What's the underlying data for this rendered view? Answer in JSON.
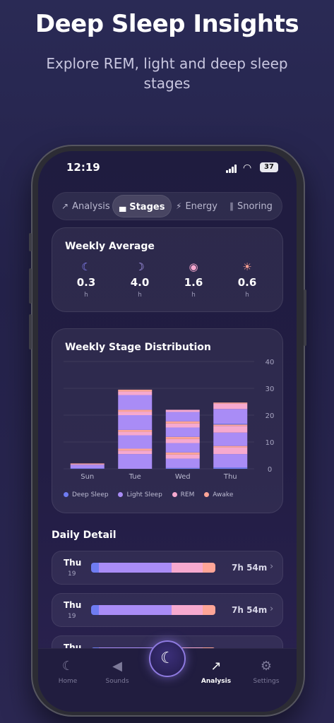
{
  "hero": {
    "title": "Deep Sleep Insights",
    "subtitle": "Explore REM, light and deep sleep stages"
  },
  "status_bar": {
    "time": "12:19",
    "battery": "37"
  },
  "tabs": [
    {
      "label": "Analysis",
      "icon": "line-chart-icon"
    },
    {
      "label": "Stages",
      "icon": "bed-icon",
      "active": true
    },
    {
      "label": "Energy",
      "icon": "bolt-icon"
    },
    {
      "label": "Snoring",
      "icon": "waveform-icon"
    }
  ],
  "weekly_average": {
    "title": "Weekly Average",
    "items": [
      {
        "icon": "moon-stars-icon",
        "value": "0.3",
        "unit": "h",
        "color": "#8a86ff"
      },
      {
        "icon": "moon-cloud-icon",
        "value": "4.0",
        "unit": "h",
        "color": "#b6a6ff"
      },
      {
        "icon": "eye-icon",
        "value": "1.6",
        "unit": "h",
        "color": "#f7a8cf"
      },
      {
        "icon": "sun-icon",
        "value": "0.6",
        "unit": "h",
        "color": "#ff9f92"
      }
    ]
  },
  "chart_data": {
    "type": "bar",
    "title": "Weekly Stage Distribution",
    "categories": [
      "Sun",
      "Tue",
      "Wed",
      "Thu"
    ],
    "y_ticks": [
      "40",
      "30",
      "20",
      "10",
      "0"
    ],
    "ylim": [
      0,
      40
    ],
    "grid": true,
    "legend_position": "bottom",
    "legend": [
      {
        "name": "Deep Sleep",
        "color": "#6f7cf2"
      },
      {
        "name": "Light Sleep",
        "color": "#a98cf6"
      },
      {
        "name": "REM",
        "color": "#f6a9cf"
      },
      {
        "name": "Awake",
        "color": "#ffa597"
      }
    ],
    "bars": [
      {
        "category": "Sun",
        "segments": [
          {
            "stage": "Deep Sleep",
            "value": 0.2
          },
          {
            "stage": "Light Sleep",
            "value": 1.3
          },
          {
            "stage": "REM",
            "value": 0.3
          },
          {
            "stage": "Awake",
            "value": 0.2
          }
        ]
      },
      {
        "category": "Tue",
        "segments": [
          {
            "stage": "Light Sleep",
            "value": 5.5
          },
          {
            "stage": "REM",
            "value": 1.3
          },
          {
            "stage": "Awake",
            "value": 0.7
          },
          {
            "stage": "Light Sleep",
            "value": 5.0
          },
          {
            "stage": "REM",
            "value": 1.3
          },
          {
            "stage": "Awake",
            "value": 0.7
          },
          {
            "stage": "Light Sleep",
            "value": 5.5
          },
          {
            "stage": "REM",
            "value": 1.3
          },
          {
            "stage": "Awake",
            "value": 0.7
          },
          {
            "stage": "Light Sleep",
            "value": 5.5
          },
          {
            "stage": "REM",
            "value": 1.3
          },
          {
            "stage": "Awake",
            "value": 0.7
          }
        ]
      },
      {
        "category": "Wed",
        "segments": [
          {
            "stage": "Deep Sleep",
            "value": 0.3
          },
          {
            "stage": "Light Sleep",
            "value": 3.5
          },
          {
            "stage": "REM",
            "value": 1.5
          },
          {
            "stage": "Awake",
            "value": 0.8
          },
          {
            "stage": "Light Sleep",
            "value": 3.5
          },
          {
            "stage": "REM",
            "value": 1.5
          },
          {
            "stage": "Awake",
            "value": 0.8
          },
          {
            "stage": "Light Sleep",
            "value": 3.5
          },
          {
            "stage": "REM",
            "value": 1.5
          },
          {
            "stage": "Awake",
            "value": 0.8
          },
          {
            "stage": "Light Sleep",
            "value": 3.5
          },
          {
            "stage": "REM",
            "value": 0.8
          }
        ]
      },
      {
        "category": "Thu",
        "segments": [
          {
            "stage": "Deep Sleep",
            "value": 0.5
          },
          {
            "stage": "Light Sleep",
            "value": 5.0
          },
          {
            "stage": "REM",
            "value": 2.5
          },
          {
            "stage": "Awake",
            "value": 0.5
          },
          {
            "stage": "Light Sleep",
            "value": 5.0
          },
          {
            "stage": "REM",
            "value": 2.5
          },
          {
            "stage": "Awake",
            "value": 0.5
          },
          {
            "stage": "Deep Sleep",
            "value": 0.3
          },
          {
            "stage": "Light Sleep",
            "value": 5.5
          },
          {
            "stage": "REM",
            "value": 2.0
          },
          {
            "stage": "Awake",
            "value": 0.4
          }
        ]
      }
    ]
  },
  "daily_detail": {
    "title": "Daily Detail",
    "rows": [
      {
        "day": "Thu",
        "date": "19",
        "duration": "7h 54m",
        "segments": [
          {
            "stage": "Deep Sleep",
            "fraction": 0.06,
            "color": "#6f7cf2"
          },
          {
            "stage": "Light Sleep",
            "fraction": 0.59,
            "color": "#a98cf6"
          },
          {
            "stage": "REM",
            "fraction": 0.25,
            "color": "#f6a9cf"
          },
          {
            "stage": "Awake",
            "fraction": 0.1,
            "color": "#ffa597"
          }
        ]
      },
      {
        "day": "Thu",
        "date": "19",
        "duration": "7h 54m",
        "segments": [
          {
            "stage": "Deep Sleep",
            "fraction": 0.06,
            "color": "#6f7cf2"
          },
          {
            "stage": "Light Sleep",
            "fraction": 0.59,
            "color": "#a98cf6"
          },
          {
            "stage": "REM",
            "fraction": 0.25,
            "color": "#f6a9cf"
          },
          {
            "stage": "Awake",
            "fraction": 0.1,
            "color": "#ffa597"
          }
        ]
      },
      {
        "day": "Thu",
        "date": "",
        "duration": "",
        "segments": [
          {
            "stage": "Deep Sleep",
            "fraction": 0.06,
            "color": "#6f7cf2"
          },
          {
            "stage": "Light Sleep",
            "fraction": 0.59,
            "color": "#a98cf6"
          },
          {
            "stage": "REM",
            "fraction": 0.25,
            "color": "#f6a9cf"
          },
          {
            "stage": "Awake",
            "fraction": 0.1,
            "color": "#ffa597"
          }
        ]
      }
    ]
  },
  "nav": {
    "items": [
      {
        "label": "Home",
        "icon": "moon-stars-icon"
      },
      {
        "label": "Sounds",
        "icon": "speaker-icon"
      },
      {
        "label": "Analysis",
        "icon": "line-chart-icon",
        "active": true
      },
      {
        "label": "Settings",
        "icon": "gear-icon"
      }
    ],
    "center_icon": "moon-sparkle-icon"
  }
}
